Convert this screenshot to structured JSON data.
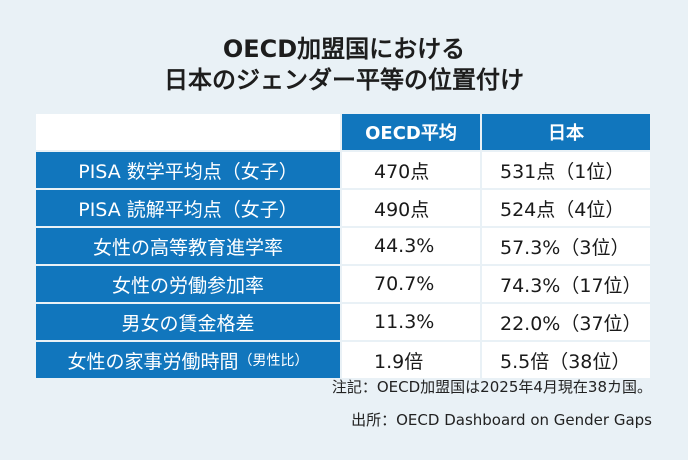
{
  "title": {
    "line1": "OECD加盟国における",
    "line2": "日本のジェンダー平等の位置付け"
  },
  "table": {
    "headers": [
      "",
      "OECD平均",
      "日本"
    ],
    "rows": [
      {
        "label": "PISA 数学平均点（女子）",
        "label_suffix": "",
        "oecd": "470点",
        "japan": "531点（1位）"
      },
      {
        "label": "PISA 読解平均点（女子）",
        "label_suffix": "",
        "oecd": "490点",
        "japan": "524点（4位）"
      },
      {
        "label": "女性の高等教育進学率",
        "label_suffix": "",
        "oecd": "44.3%",
        "japan": "57.3%（3位）"
      },
      {
        "label": "女性の労働参加率",
        "label_suffix": "",
        "oecd": "70.7%",
        "japan": "74.3%（17位）"
      },
      {
        "label": "男女の賃金格差",
        "label_suffix": "",
        "oecd": "11.3%",
        "japan": "22.0%（37位）"
      },
      {
        "label": "女性の家事労働時間",
        "label_suffix": "（男性比）",
        "oecd": "1.9倍",
        "japan": "5.5倍（38位）"
      }
    ]
  },
  "notes": {
    "note1": "注記：OECD加盟国は2025年4月現在38カ国。",
    "note2": "出所：OECD Dashboard on Gender Gaps"
  }
}
